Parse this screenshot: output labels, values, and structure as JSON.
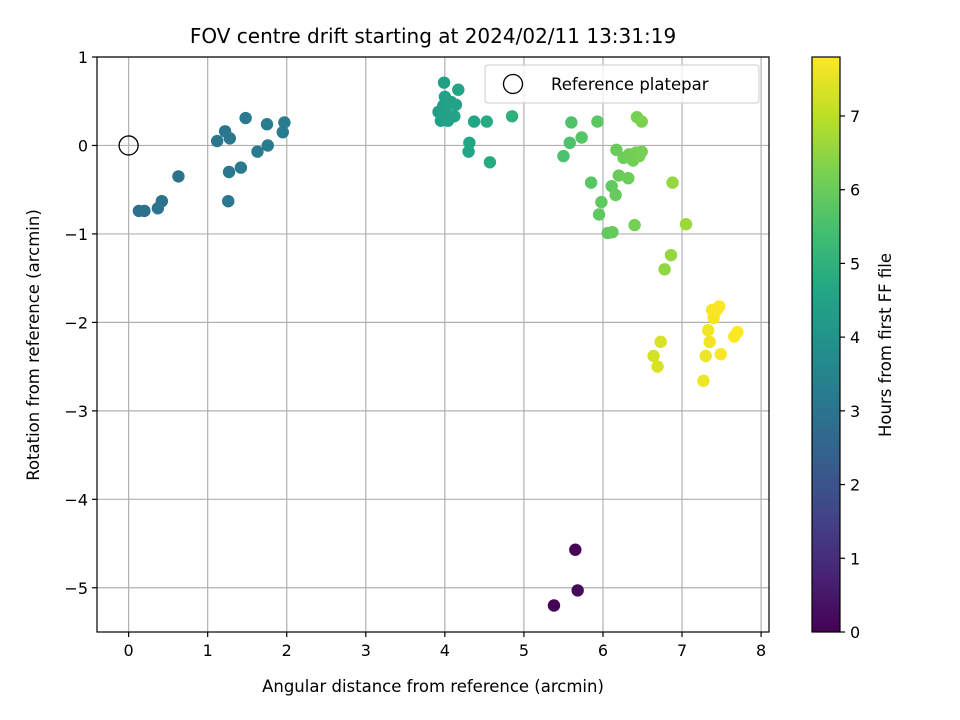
{
  "chart_data": {
    "type": "scatter",
    "title": "FOV centre drift starting at 2024/02/11 13:31:19",
    "xlabel": "Angular distance from reference (arcmin)",
    "ylabel": "Rotation from reference (arcmin)",
    "xlim": [
      -0.4,
      8.1
    ],
    "ylim": [
      -5.5,
      1.0
    ],
    "xticks": [
      0,
      1,
      2,
      3,
      4,
      5,
      6,
      7,
      8
    ],
    "yticks": [
      1,
      0,
      -1,
      -2,
      -3,
      -4,
      -5
    ],
    "grid": true,
    "legend": {
      "placement": "top-right",
      "entries": [
        "Reference platepar"
      ]
    },
    "reference_point": {
      "x": 0,
      "y": 0,
      "label": "Reference platepar"
    },
    "colorbar": {
      "label": "Hours from first FF file",
      "range": [
        0,
        7.8
      ],
      "ticks": [
        0,
        1,
        2,
        3,
        4,
        5,
        6,
        7
      ],
      "colormap": "viridis"
    },
    "points": [
      {
        "x": 5.38,
        "y": -5.2,
        "h": 0.05
      },
      {
        "x": 5.65,
        "y": -4.57,
        "h": 0.12
      },
      {
        "x": 5.68,
        "y": -5.03,
        "h": 0.2
      },
      {
        "x": 0.13,
        "y": -0.74,
        "h": 2.9
      },
      {
        "x": 0.2,
        "y": -0.74,
        "h": 2.9
      },
      {
        "x": 0.37,
        "y": -0.71,
        "h": 2.95
      },
      {
        "x": 0.42,
        "y": -0.63,
        "h": 2.95
      },
      {
        "x": 0.63,
        "y": -0.35,
        "h": 3.0
      },
      {
        "x": 1.12,
        "y": 0.05,
        "h": 3.05
      },
      {
        "x": 1.22,
        "y": 0.16,
        "h": 3.05
      },
      {
        "x": 1.28,
        "y": 0.08,
        "h": 3.1
      },
      {
        "x": 1.27,
        "y": -0.3,
        "h": 3.1
      },
      {
        "x": 1.26,
        "y": -0.63,
        "h": 3.1
      },
      {
        "x": 1.42,
        "y": -0.25,
        "h": 3.15
      },
      {
        "x": 1.48,
        "y": 0.31,
        "h": 3.15
      },
      {
        "x": 1.63,
        "y": -0.07,
        "h": 3.2
      },
      {
        "x": 1.76,
        "y": 0.0,
        "h": 3.2
      },
      {
        "x": 1.75,
        "y": 0.24,
        "h": 3.25
      },
      {
        "x": 1.95,
        "y": 0.15,
        "h": 3.25
      },
      {
        "x": 1.97,
        "y": 0.26,
        "h": 3.3
      },
      {
        "x": 3.92,
        "y": 0.38,
        "h": 4.35
      },
      {
        "x": 3.95,
        "y": 0.28,
        "h": 4.4
      },
      {
        "x": 3.98,
        "y": 0.45,
        "h": 4.4
      },
      {
        "x": 3.99,
        "y": 0.71,
        "h": 4.4
      },
      {
        "x": 4.0,
        "y": 0.55,
        "h": 4.45
      },
      {
        "x": 4.03,
        "y": 0.36,
        "h": 4.45
      },
      {
        "x": 4.04,
        "y": 0.28,
        "h": 4.45
      },
      {
        "x": 4.08,
        "y": 0.49,
        "h": 4.5
      },
      {
        "x": 4.12,
        "y": 0.33,
        "h": 4.5
      },
      {
        "x": 4.14,
        "y": 0.46,
        "h": 4.5
      },
      {
        "x": 4.17,
        "y": 0.63,
        "h": 4.55
      },
      {
        "x": 4.3,
        "y": -0.07,
        "h": 4.6
      },
      {
        "x": 4.31,
        "y": 0.03,
        "h": 4.6
      },
      {
        "x": 4.37,
        "y": 0.27,
        "h": 4.65
      },
      {
        "x": 4.53,
        "y": 0.27,
        "h": 4.75
      },
      {
        "x": 4.57,
        "y": -0.19,
        "h": 4.8
      },
      {
        "x": 4.85,
        "y": 0.33,
        "h": 4.95
      },
      {
        "x": 5.5,
        "y": -0.12,
        "h": 5.55
      },
      {
        "x": 5.58,
        "y": 0.03,
        "h": 5.6
      },
      {
        "x": 5.6,
        "y": 0.26,
        "h": 5.6
      },
      {
        "x": 5.73,
        "y": 0.09,
        "h": 5.7
      },
      {
        "x": 5.85,
        "y": -0.42,
        "h": 5.75
      },
      {
        "x": 5.93,
        "y": 0.27,
        "h": 5.8
      },
      {
        "x": 5.95,
        "y": -0.78,
        "h": 5.85
      },
      {
        "x": 5.98,
        "y": -0.64,
        "h": 5.85
      },
      {
        "x": 6.06,
        "y": -0.99,
        "h": 5.9
      },
      {
        "x": 6.11,
        "y": -0.46,
        "h": 5.9
      },
      {
        "x": 6.12,
        "y": -0.98,
        "h": 5.95
      },
      {
        "x": 6.16,
        "y": -0.56,
        "h": 5.95
      },
      {
        "x": 6.17,
        "y": -0.05,
        "h": 6.0
      },
      {
        "x": 6.2,
        "y": -0.34,
        "h": 6.0
      },
      {
        "x": 6.26,
        "y": -0.14,
        "h": 6.05
      },
      {
        "x": 6.32,
        "y": -0.37,
        "h": 6.05
      },
      {
        "x": 6.33,
        "y": -0.1,
        "h": 6.1
      },
      {
        "x": 6.38,
        "y": -0.17,
        "h": 6.1
      },
      {
        "x": 6.4,
        "y": -0.9,
        "h": 6.15
      },
      {
        "x": 6.42,
        "y": -0.08,
        "h": 6.15
      },
      {
        "x": 6.43,
        "y": 0.32,
        "h": 6.15
      },
      {
        "x": 6.46,
        "y": -0.12,
        "h": 6.2
      },
      {
        "x": 6.49,
        "y": -0.07,
        "h": 6.2
      },
      {
        "x": 6.49,
        "y": 0.27,
        "h": 6.25
      },
      {
        "x": 6.78,
        "y": -1.4,
        "h": 6.5
      },
      {
        "x": 6.86,
        "y": -1.24,
        "h": 6.55
      },
      {
        "x": 6.88,
        "y": -0.42,
        "h": 6.55
      },
      {
        "x": 7.05,
        "y": -0.89,
        "h": 6.65
      },
      {
        "x": 6.64,
        "y": -2.38,
        "h": 7.3
      },
      {
        "x": 6.69,
        "y": -2.5,
        "h": 7.35
      },
      {
        "x": 6.73,
        "y": -2.22,
        "h": 7.35
      },
      {
        "x": 7.27,
        "y": -2.66,
        "h": 7.6
      },
      {
        "x": 7.3,
        "y": -2.38,
        "h": 7.6
      },
      {
        "x": 7.33,
        "y": -2.09,
        "h": 7.65
      },
      {
        "x": 7.35,
        "y": -2.22,
        "h": 7.65
      },
      {
        "x": 7.38,
        "y": -1.86,
        "h": 7.7
      },
      {
        "x": 7.4,
        "y": -1.95,
        "h": 7.7
      },
      {
        "x": 7.44,
        "y": -1.86,
        "h": 7.75
      },
      {
        "x": 7.47,
        "y": -1.82,
        "h": 7.75
      },
      {
        "x": 7.49,
        "y": -2.36,
        "h": 7.75
      },
      {
        "x": 7.66,
        "y": -2.16,
        "h": 7.8
      },
      {
        "x": 7.7,
        "y": -2.11,
        "h": 7.8
      }
    ]
  }
}
